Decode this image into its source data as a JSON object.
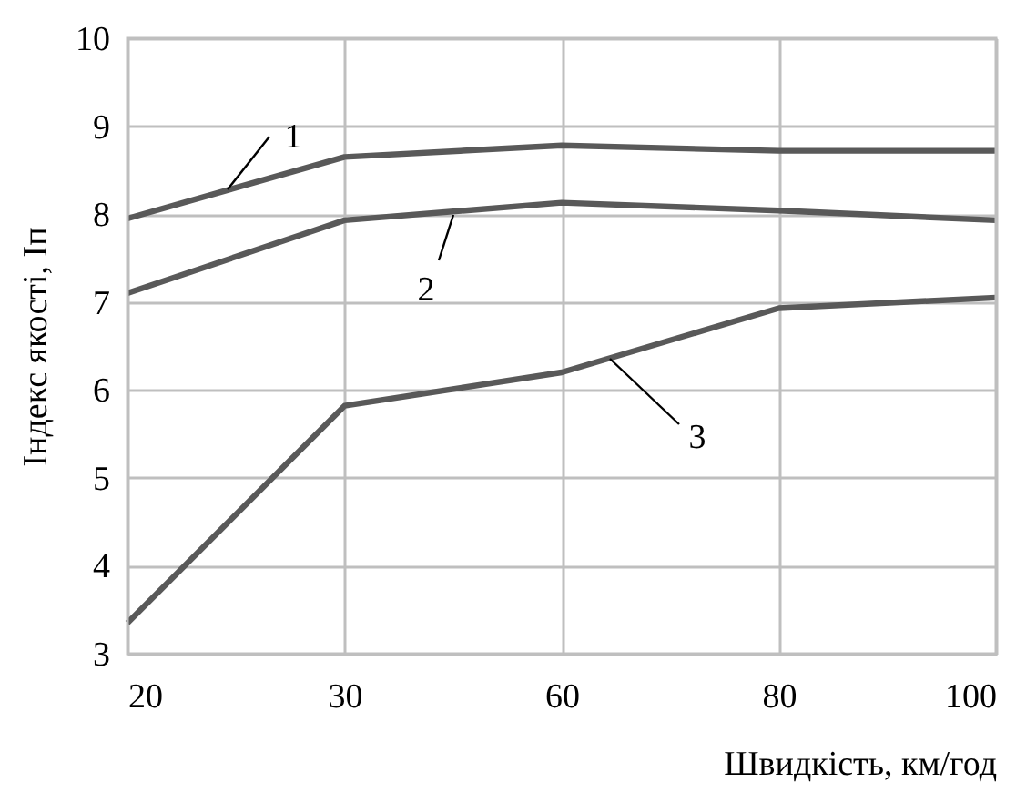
{
  "chart_data": {
    "type": "line",
    "xlabel": "Швидкість, км/год",
    "ylabel": "Індекс якості, Іп",
    "categories": [
      "20",
      "30",
      "60",
      "80",
      "100"
    ],
    "series": [
      {
        "name": "1",
        "color": "#595959",
        "values": [
          7.95,
          8.65,
          8.78,
          8.72,
          8.72
        ]
      },
      {
        "name": "2",
        "color": "#595959",
        "values": [
          7.1,
          7.93,
          8.13,
          8.04,
          7.93
        ]
      },
      {
        "name": "3",
        "color": "#595959",
        "values": [
          3.35,
          5.82,
          6.2,
          6.93,
          7.05
        ]
      }
    ],
    "ylim": [
      3,
      10
    ],
    "yticks": [
      3,
      4,
      5,
      6,
      7,
      8,
      9,
      10
    ],
    "grid": true,
    "legend": false,
    "marker": "none",
    "line_style": "solid"
  }
}
